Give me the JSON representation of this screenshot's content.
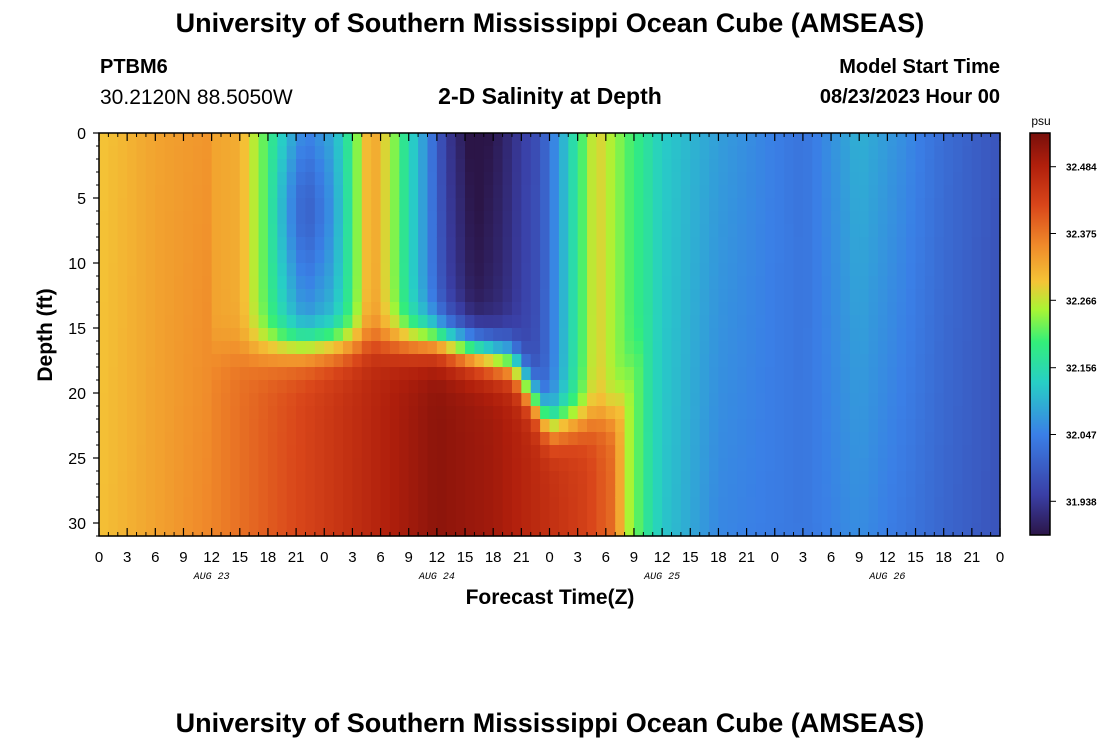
{
  "header": {
    "title": "University of Southern Mississippi Ocean Cube (AMSEAS)",
    "station_id": "PTBM6",
    "station_coords": "30.2120N  88.5050W",
    "chart_title": "2-D Salinity at Depth",
    "model_start_label": "Model Start Time",
    "model_start_value": "08/23/2023 Hour 00"
  },
  "footer": {
    "title": "University of Southern Mississippi Ocean Cube (AMSEAS)"
  },
  "chart_data": {
    "type": "heatmap",
    "title": "2-D Salinity at Depth",
    "xlabel": "Forecast Time(Z)",
    "ylabel": "Depth (ft)",
    "x_range_hours": [
      0,
      96
    ],
    "x_tick_labels": [
      "0",
      "3",
      "6",
      "9",
      "12",
      "15",
      "18",
      "21",
      "0",
      "3",
      "6",
      "9",
      "12",
      "15",
      "18",
      "21",
      "0",
      "3",
      "6",
      "9",
      "12",
      "15",
      "18",
      "21",
      "0",
      "3",
      "6",
      "9",
      "12",
      "15",
      "18",
      "21",
      "0"
    ],
    "date_labels": [
      "AUG 23",
      "AUG 24",
      "AUG 25",
      "AUG 26"
    ],
    "ylim": [
      0,
      31
    ],
    "y_ticks": [
      0,
      5,
      10,
      15,
      20,
      25,
      30
    ],
    "colorbar": {
      "unit": "psu",
      "min": 31.883,
      "max": 32.539,
      "tick_values": [
        31.938,
        32.047,
        32.156,
        32.266,
        32.375,
        32.484
      ],
      "tick_labels": [
        "31.938",
        "32.047",
        "32.156",
        "32.266",
        "32.375",
        "32.484"
      ]
    },
    "description_values": {
      "surface_by_hour": [
        [
          0,
          32.29
        ],
        [
          6,
          32.33
        ],
        [
          12,
          32.33
        ],
        [
          15,
          32.32
        ],
        [
          18,
          32.2
        ],
        [
          20,
          32.12
        ],
        [
          22,
          32.06
        ],
        [
          25,
          32.1
        ],
        [
          27,
          32.2
        ],
        [
          29,
          32.34
        ],
        [
          31,
          32.26
        ],
        [
          33,
          32.15
        ],
        [
          35,
          32.06
        ],
        [
          37,
          31.96
        ],
        [
          40,
          31.9
        ],
        [
          43,
          31.92
        ],
        [
          47,
          31.98
        ],
        [
          50,
          32.13
        ],
        [
          53,
          32.29
        ],
        [
          56,
          32.22
        ],
        [
          60,
          32.13
        ],
        [
          66,
          32.08
        ],
        [
          75,
          32.03
        ],
        [
          81,
          32.1
        ],
        [
          86,
          32.06
        ],
        [
          90,
          32.02
        ],
        [
          96,
          31.98
        ]
      ],
      "bottom_by_hour": [
        [
          0,
          32.3
        ],
        [
          12,
          32.36
        ],
        [
          24,
          32.44
        ],
        [
          36,
          32.52
        ],
        [
          42,
          32.5
        ],
        [
          52,
          32.43
        ],
        [
          55,
          32.38
        ],
        [
          56,
          32.27
        ],
        [
          60,
          32.12
        ],
        [
          66,
          32.04
        ],
        [
          80,
          32.04
        ],
        [
          96,
          31.98
        ]
      ]
    }
  }
}
